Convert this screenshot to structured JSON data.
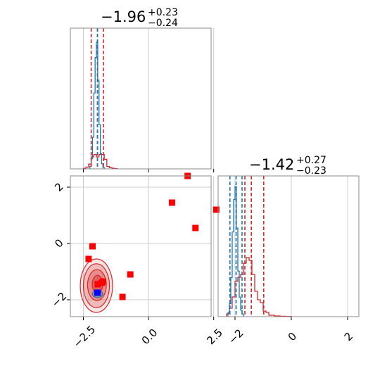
{
  "chart_data": {
    "type": "corner",
    "titles": {
      "param1": {
        "value": "−1.96",
        "sup": "+0.23",
        "sub": "−0.24"
      },
      "param2": {
        "value": "−1.42",
        "sup": "+0.27",
        "sub": "−0.23"
      }
    },
    "colors": {
      "blue": "#1f77b4",
      "red": "#d62728",
      "marker_red": "#ff0000",
      "marker_blue": "#0000ff",
      "grid": "#cccccc",
      "axes": "#888888"
    },
    "ranges": {
      "param1": [
        -3.0,
        2.4
      ],
      "param2": [
        -2.6,
        2.4
      ]
    },
    "ticks": {
      "param1": [
        {
          "v": -2.5,
          "label": "−2.5"
        },
        {
          "v": 0.0,
          "label": "0.0"
        },
        {
          "v": 2.5,
          "label": "2.5"
        }
      ],
      "param2": [
        {
          "v": -2,
          "label": "−2"
        },
        {
          "v": 0,
          "label": "0"
        },
        {
          "v": 2,
          "label": "2"
        }
      ]
    },
    "hist_param1": {
      "blue_quantile_lines": [
        -2.2,
        -1.96,
        -1.73
      ],
      "red_quantile_lines": [
        -2.2,
        -1.96,
        -1.73
      ],
      "blue_hist": {
        "edges": [
          -2.25,
          -2.2,
          -2.15,
          -2.1,
          -2.05,
          -2.0,
          -1.95,
          -1.9,
          -1.85,
          -1.8,
          -1.75,
          -1.7
        ],
        "counts": [
          0.02,
          0.08,
          0.25,
          0.6,
          0.88,
          1.0,
          0.7,
          0.35,
          0.12,
          0.04,
          0.01
        ]
      },
      "red_hist": {
        "edges": [
          -2.5,
          -2.4,
          -2.3,
          -2.2,
          -2.1,
          -2.0,
          -1.9,
          -1.8,
          -1.7,
          -1.6,
          -1.5,
          -1.4,
          -1.3,
          -1.2
        ],
        "counts": [
          0.005,
          0.015,
          0.04,
          0.1,
          0.12,
          0.1,
          0.12,
          0.12,
          0.08,
          0.02,
          0.01,
          0.005,
          0.002
        ]
      }
    },
    "hist_param2": {
      "blue_quantile_lines": [
        -2.18,
        -1.96,
        -1.75
      ],
      "red_quantile_lines": [
        -1.65,
        -1.42,
        -0.98
      ],
      "blue_hist": {
        "edges": [
          -2.25,
          -2.2,
          -2.15,
          -2.1,
          -2.05,
          -2.0,
          -1.95,
          -1.9,
          -1.85,
          -1.8,
          -1.75,
          -1.7
        ],
        "counts": [
          0.03,
          0.1,
          0.3,
          0.65,
          0.9,
          1.0,
          0.68,
          0.35,
          0.15,
          0.05,
          0.02
        ]
      },
      "red_hist": {
        "edges": [
          -2.3,
          -2.2,
          -2.1,
          -2.0,
          -1.9,
          -1.8,
          -1.7,
          -1.6,
          -1.5,
          -1.4,
          -1.3,
          -1.2,
          -1.1,
          -1.0,
          -0.9,
          -0.8,
          -0.6,
          -0.4,
          -0.2,
          0.0
        ],
        "counts": [
          0.02,
          0.06,
          0.14,
          0.25,
          0.28,
          0.3,
          0.38,
          0.42,
          0.4,
          0.3,
          0.18,
          0.12,
          0.1,
          0.04,
          0.03,
          0.01,
          0.005,
          0.003,
          0.002
        ]
      }
    },
    "markers_red": [
      [
        1.5,
        2.4
      ],
      [
        0.9,
        1.45
      ],
      [
        2.6,
        1.2
      ],
      [
        1.8,
        0.55
      ],
      [
        -2.15,
        -0.1
      ],
      [
        -2.3,
        -0.55
      ],
      [
        -0.7,
        -1.1
      ],
      [
        -1.8,
        -1.4
      ],
      [
        -1.95,
        -1.45
      ],
      [
        -1.0,
        -1.9
      ],
      [
        -1.75,
        -1.35
      ]
    ],
    "marker_blue": [
      -1.96,
      -1.75
    ],
    "contours_red": [
      {
        "cx": -2.0,
        "cy": -1.5,
        "rx": 0.62,
        "ry": 0.95,
        "opacity": 0.12
      },
      {
        "cx": -2.0,
        "cy": -1.5,
        "rx": 0.5,
        "ry": 0.78,
        "opacity": 0.22
      },
      {
        "cx": -1.98,
        "cy": -1.48,
        "rx": 0.36,
        "ry": 0.55,
        "opacity": 0.32
      },
      {
        "cx": -1.96,
        "cy": -1.45,
        "rx": 0.2,
        "ry": 0.32,
        "opacity": 0.45
      }
    ],
    "contours_blue": [
      {
        "cx": -1.96,
        "cy": -1.8,
        "rx": 0.2,
        "ry": 0.12,
        "opacity": 0.35
      }
    ]
  }
}
